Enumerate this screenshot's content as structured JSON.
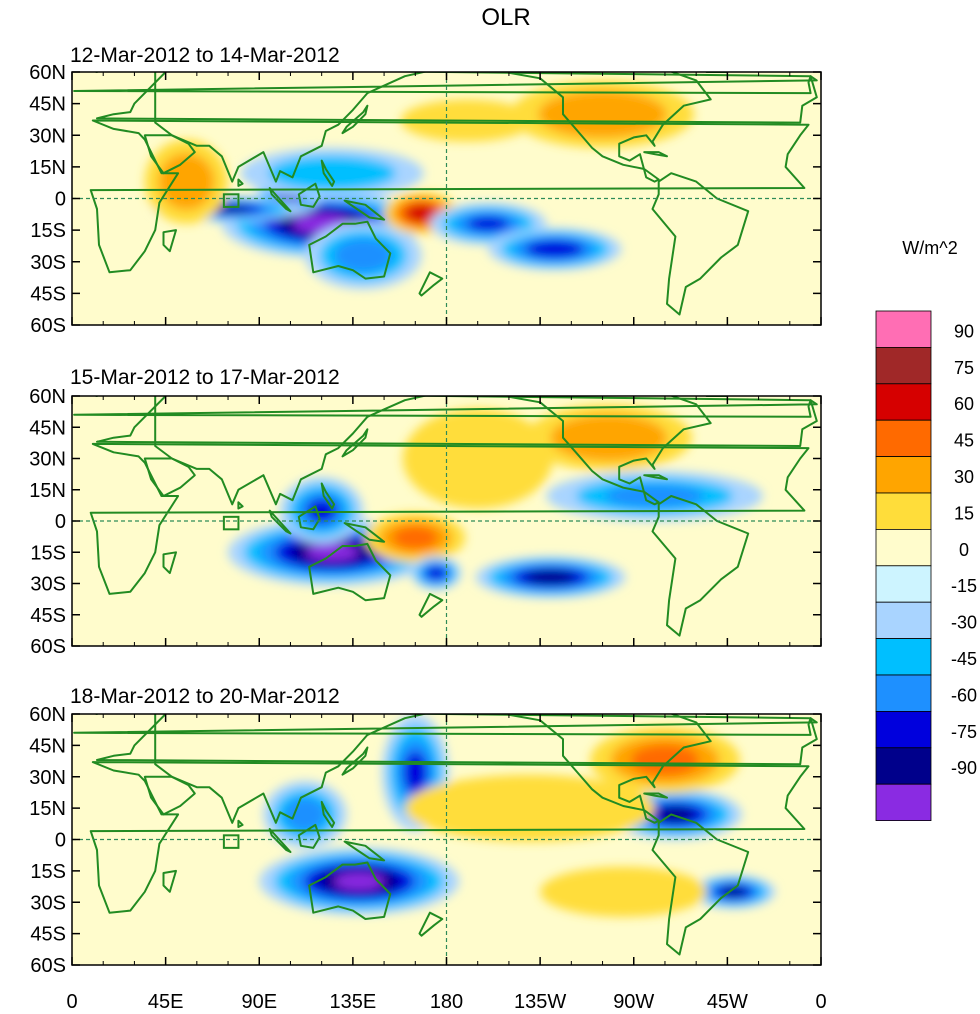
{
  "title": "OLR",
  "units": "W/m^2",
  "panels": [
    {
      "subtitle": "12-Mar-2012 to 14-Mar-2012"
    },
    {
      "subtitle": "15-Mar-2012 to 17-Mar-2012"
    },
    {
      "subtitle": "18-Mar-2012 to 20-Mar-2012"
    }
  ],
  "lat_labels": [
    "60N",
    "45N",
    "30N",
    "15N",
    "0",
    "15S",
    "30S",
    "45S",
    "60S"
  ],
  "lon_labels": [
    "0",
    "45E",
    "90E",
    "135E",
    "180",
    "135W",
    "90W",
    "45W",
    "0"
  ],
  "colorbar": {
    "labels": [
      "90",
      "75",
      "60",
      "45",
      "30",
      "15",
      "0",
      "-15",
      "-30",
      "-45",
      "-60",
      "-75",
      "-90"
    ],
    "colors": [
      "#ff6eb4",
      "#a02828",
      "#d60000",
      "#ff6a00",
      "#ffa500",
      "#ffdd3a",
      "#fffccc",
      "#cdf4ff",
      "#a9d4ff",
      "#00bfff",
      "#1e90ff",
      "#0000dd",
      "#00008b",
      "#8a2be2"
    ]
  },
  "colors": {
    "coast": "#228b22",
    "ref_line": "#2e8b57"
  },
  "chart_data": {
    "type": "heatmap",
    "title": "OLR",
    "colorbar_title": "W/m^2",
    "levels": [
      -90,
      -75,
      -60,
      -45,
      -30,
      -15,
      0,
      15,
      30,
      45,
      60,
      75,
      90
    ],
    "lon_range": [
      0,
      360
    ],
    "lat_range": [
      -60,
      60
    ],
    "x_ticks": [
      "0",
      "45E",
      "90E",
      "135E",
      "180",
      "135W",
      "90W",
      "45W",
      "0"
    ],
    "y_ticks": [
      "60N",
      "45N",
      "30N",
      "15N",
      "0",
      "15S",
      "30S",
      "45S",
      "60S"
    ],
    "panels": [
      {
        "subtitle": "12-Mar-2012 to 14-Mar-2012",
        "anomalies": [
          {
            "lon": 120,
            "lat": -12,
            "rx": 24,
            "ry": 8,
            "value": -95
          },
          {
            "lon": 105,
            "lat": 4,
            "rx": 8,
            "ry": 6,
            "value": -80
          },
          {
            "lon": 75,
            "lat": -5,
            "rx": 18,
            "ry": 3,
            "value": -75
          },
          {
            "lon": 140,
            "lat": -27,
            "rx": 14,
            "ry": 8,
            "value": -50
          },
          {
            "lon": 125,
            "lat": 12,
            "rx": 22,
            "ry": 6,
            "value": -40
          },
          {
            "lon": 168,
            "lat": -7,
            "rx": 9,
            "ry": 5,
            "value": 70
          },
          {
            "lon": 200,
            "lat": -12,
            "rx": 14,
            "ry": 5,
            "value": -60
          },
          {
            "lon": 232,
            "lat": -24,
            "rx": 16,
            "ry": 5,
            "value": -70
          },
          {
            "lon": 255,
            "lat": 40,
            "rx": 22,
            "ry": 8,
            "value": 40
          },
          {
            "lon": 55,
            "lat": 8,
            "rx": 10,
            "ry": 10,
            "value": 35
          },
          {
            "lon": 190,
            "lat": 37,
            "rx": 16,
            "ry": 5,
            "value": 25
          }
        ]
      },
      {
        "subtitle": "15-Mar-2012 to 17-Mar-2012",
        "anomalies": [
          {
            "lon": 125,
            "lat": -15,
            "rx": 25,
            "ry": 8,
            "value": -90
          },
          {
            "lon": 120,
            "lat": 5,
            "rx": 10,
            "ry": 8,
            "value": -60
          },
          {
            "lon": 165,
            "lat": -8,
            "rx": 12,
            "ry": 6,
            "value": 45
          },
          {
            "lon": 230,
            "lat": -27,
            "rx": 18,
            "ry": 5,
            "value": -80
          },
          {
            "lon": 280,
            "lat": 12,
            "rx": 26,
            "ry": 6,
            "value": -45
          },
          {
            "lon": 258,
            "lat": 40,
            "rx": 20,
            "ry": 8,
            "value": 40
          },
          {
            "lon": 195,
            "lat": 30,
            "rx": 18,
            "ry": 12,
            "value": 25
          },
          {
            "lon": 175,
            "lat": -25,
            "rx": 6,
            "ry": 4,
            "value": -70
          }
        ]
      },
      {
        "subtitle": "18-Mar-2012 to 20-Mar-2012",
        "anomalies": [
          {
            "lon": 138,
            "lat": -20,
            "rx": 24,
            "ry": 8,
            "value": -90
          },
          {
            "lon": 165,
            "lat": 32,
            "rx": 8,
            "ry": 14,
            "value": -60
          },
          {
            "lon": 112,
            "lat": 12,
            "rx": 10,
            "ry": 8,
            "value": -50
          },
          {
            "lon": 290,
            "lat": 12,
            "rx": 16,
            "ry": 6,
            "value": -75
          },
          {
            "lon": 318,
            "lat": -25,
            "rx": 10,
            "ry": 4,
            "value": -75
          },
          {
            "lon": 285,
            "lat": 38,
            "rx": 18,
            "ry": 8,
            "value": 45
          },
          {
            "lon": 220,
            "lat": 15,
            "rx": 30,
            "ry": 8,
            "value": 25
          },
          {
            "lon": 265,
            "lat": -25,
            "rx": 20,
            "ry": 6,
            "value": 25
          }
        ]
      }
    ]
  }
}
